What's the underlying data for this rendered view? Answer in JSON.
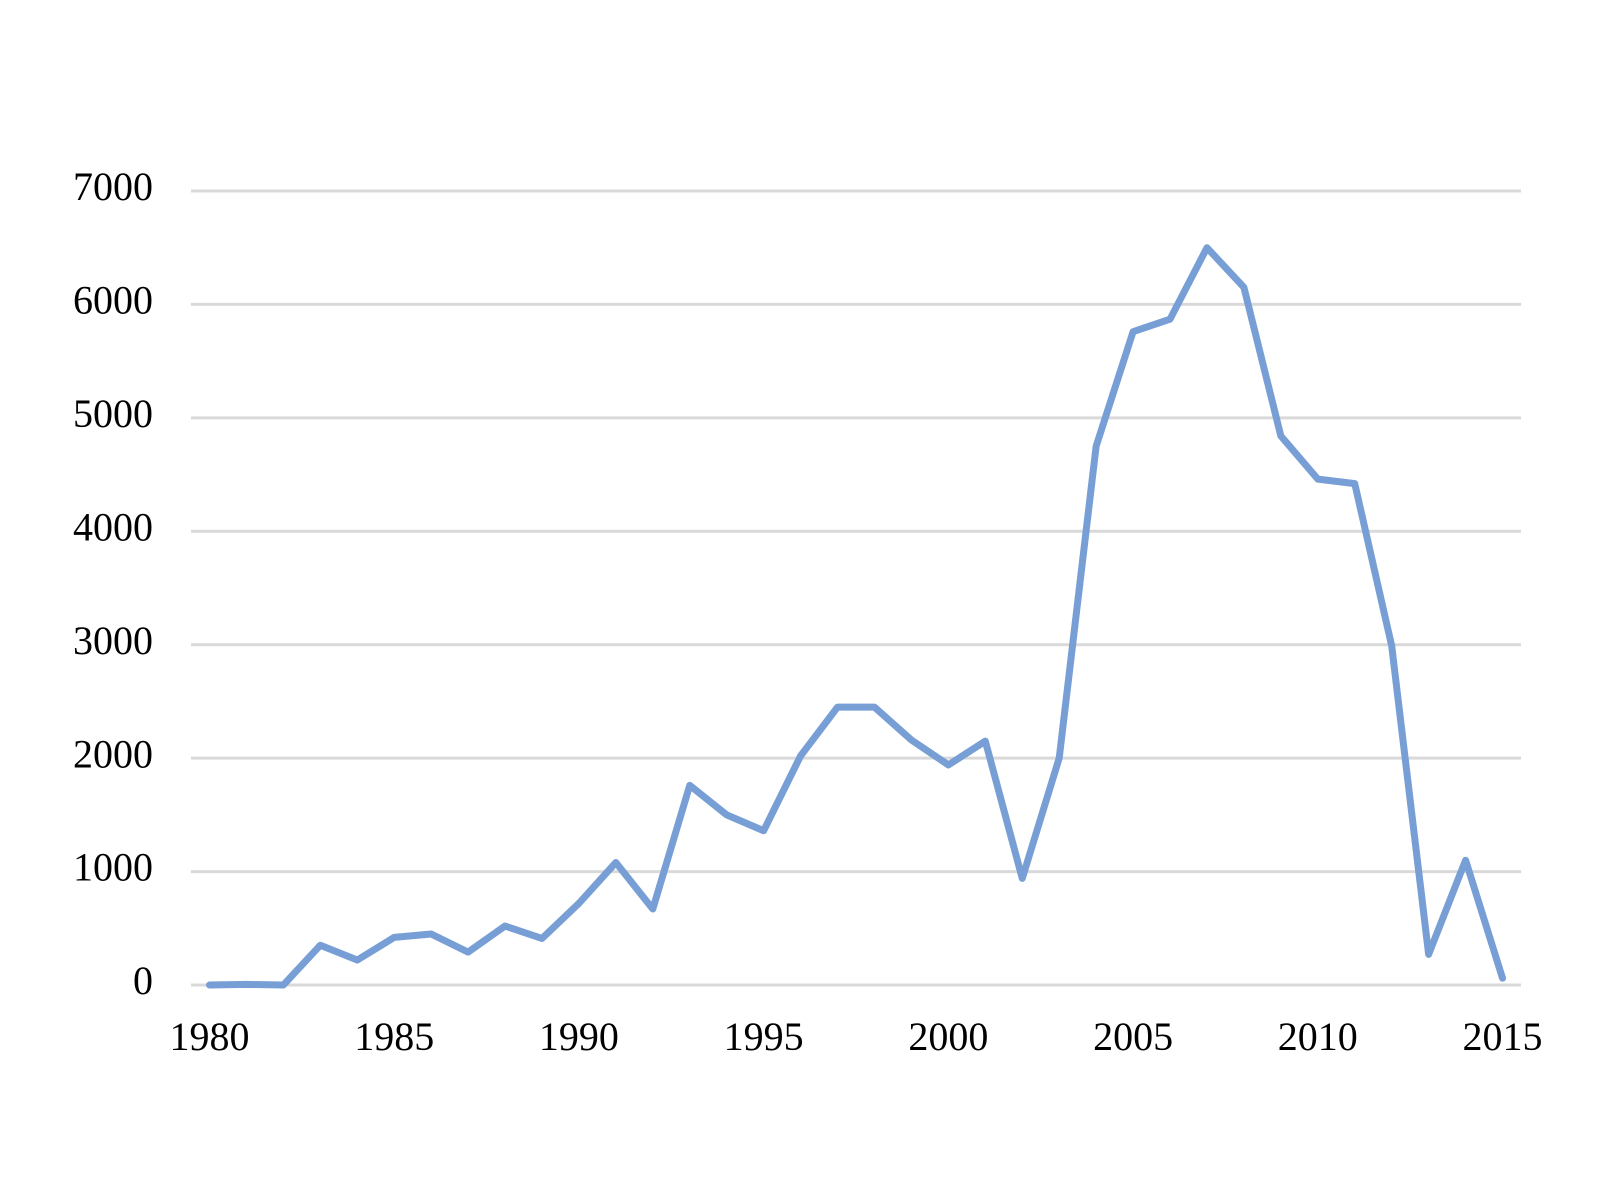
{
  "chart_data": {
    "type": "line",
    "x": [
      1980,
      1981,
      1982,
      1983,
      1984,
      1985,
      1986,
      1987,
      1988,
      1989,
      1990,
      1991,
      1992,
      1993,
      1994,
      1995,
      1996,
      1997,
      1998,
      1999,
      2000,
      2001,
      2002,
      2003,
      2004,
      2005,
      2006,
      2007,
      2008,
      2009,
      2010,
      2011,
      2012,
      2013,
      2014,
      2015
    ],
    "series": [
      {
        "color": "#779fd5",
        "values": [
          0,
          5,
          0,
          350,
          220,
          420,
          450,
          290,
          520,
          410,
          720,
          1080,
          670,
          1760,
          1500,
          1360,
          2020,
          2450,
          2450,
          2160,
          1940,
          2150,
          940,
          2000,
          4750,
          5760,
          5870,
          6500,
          6150,
          4840,
          4460,
          4420,
          2990,
          270,
          1100,
          60
        ]
      }
    ],
    "xlim": [
      1979.5,
      2015.5
    ],
    "xticks": [
      1980,
      1985,
      1990,
      1995,
      2000,
      2005,
      2010,
      2015
    ],
    "ylim": [
      0,
      7000
    ],
    "yticks": [
      0,
      1000,
      2000,
      3000,
      4000,
      5000,
      6000,
      7000
    ],
    "grid": true
  }
}
